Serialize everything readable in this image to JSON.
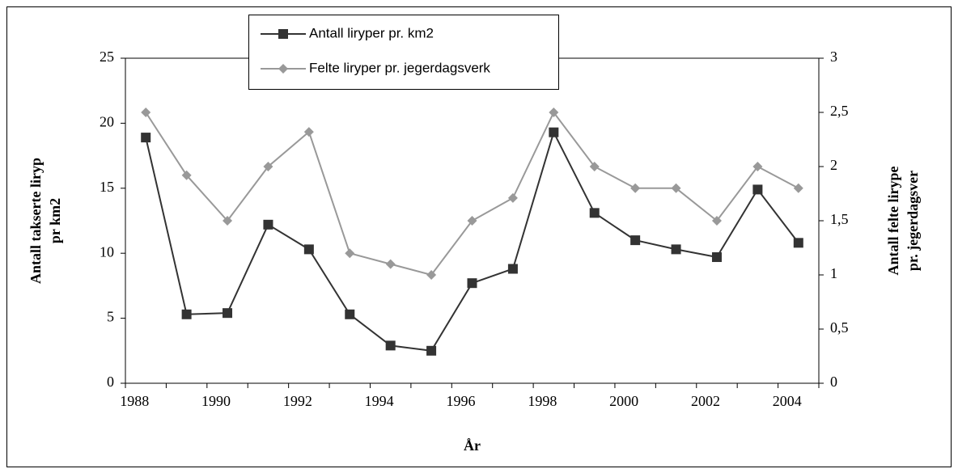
{
  "chart_data": {
    "type": "line",
    "categories": [
      "1988",
      null,
      "1990",
      null,
      "1992",
      null,
      "1994",
      null,
      "1996",
      null,
      "1998",
      null,
      "2000",
      null,
      "2002",
      null,
      "2004"
    ],
    "x_label": "År",
    "y_label": [
      "Antall takserte liryp",
      "pr km2"
    ],
    "y2_label": [
      "Antall felte lirype",
      "pr. jegerdagsver"
    ],
    "ylim": [
      0,
      25
    ],
    "yticks": [
      0,
      5,
      10,
      15,
      20,
      25
    ],
    "y2lim": [
      0,
      3
    ],
    "y2ticks": [
      0,
      {
        "value": 0.5,
        "label": "0,5"
      },
      1,
      {
        "value": 1.5,
        "label": "1,5"
      },
      2,
      {
        "value": 2.5,
        "label": "2,5"
      },
      3
    ],
    "series": [
      {
        "name": "Antall liryper pr. km2",
        "color": "#333333",
        "marker": "square",
        "values": [
          18.9,
          5.3,
          5.4,
          12.2,
          10.3,
          5.3,
          2.9,
          2.5,
          7.7,
          8.8,
          19.3,
          13.1,
          11.0,
          10.3,
          9.7,
          14.9,
          10.8
        ]
      },
      {
        "name": "Felte liryper pr. jegerdagsverk",
        "color": "#999999",
        "marker": "diamond",
        "axis": "y2",
        "values": [
          2.5,
          1.92,
          1.5,
          2.0,
          2.32,
          1.2,
          1.1,
          1.0,
          1.5,
          1.71,
          2.5,
          2.0,
          1.8,
          1.8,
          1.5,
          2.0,
          1.8
        ]
      }
    ]
  }
}
